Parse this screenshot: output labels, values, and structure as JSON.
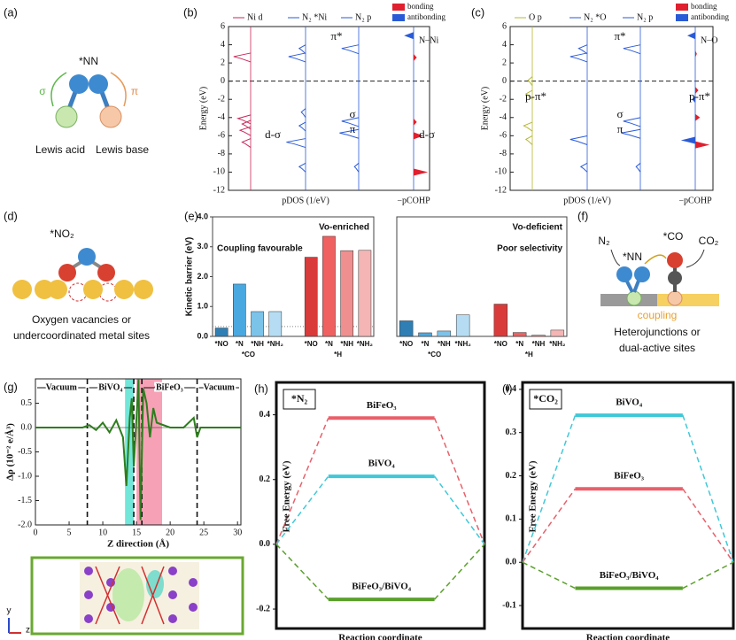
{
  "panel_labels": [
    "(a)",
    "(b)",
    "(c)",
    "(d)",
    "(e)",
    "(f)",
    "(g)",
    "(h)",
    "(i)"
  ],
  "schematics": {
    "a": {
      "species": "*NN",
      "sigma": "σ",
      "pi": "π",
      "left": "Lewis acid",
      "right": "Lewis base"
    },
    "d": {
      "species": "*NO₂",
      "caption": [
        "Oxygen vacancies or",
        "undercoordinated metal sites"
      ]
    },
    "f": {
      "left": "N₂",
      "species": "*NN",
      "middle": "*CO",
      "right": "CO₂",
      "link": "coupling",
      "caption": [
        "Heterojunctions or",
        "dual-active sites"
      ]
    },
    "g_inset": {
      "axes": [
        "y",
        "z"
      ]
    }
  },
  "chart_data": [
    {
      "type": "pdos",
      "ylabel": "Energy (eV)",
      "ylim": [
        -12,
        6
      ],
      "yticks": [
        6,
        4,
        2,
        0,
        -2,
        -4,
        -6,
        -8,
        -10,
        -12
      ],
      "xlabels": [
        "pDOS (1/eV)",
        "−pCOHP"
      ],
      "bonding": "bonding",
      "antibonding": "antibonding",
      "bonding_color": "#e0202e",
      "antibonding_color": "#2a5bd7",
      "bond": "N–Ni",
      "columns": [
        {
          "name": "Ni d",
          "color": "#c8285a",
          "energies": [
            2.6,
            -4.2,
            -4.8,
            -5.5,
            -6.8
          ],
          "heights": [
            0.8,
            0.6,
            0.4,
            0.5,
            0.4
          ]
        },
        {
          "name": "N₂ *Ni",
          "color": "#2a5bd7",
          "energies": [
            3.5,
            2.6,
            -3.5,
            -5,
            -6.8,
            -9.5
          ],
          "heights": [
            0.3,
            0.8,
            0.2,
            0.3,
            0.9,
            0.3
          ]
        },
        {
          "name": "N₂ p",
          "color": "#2a5bd7",
          "energies": [
            3.5,
            -4.5,
            -5.8,
            -9.5
          ],
          "heights": [
            0.8,
            0.8,
            0.9,
            0.2
          ]
        }
      ],
      "cohp": {
        "energies": [
          5,
          2.6,
          -4.5,
          -6,
          -10
        ],
        "values": [
          -0.6,
          0.2,
          0.2,
          0.6,
          0.9
        ]
      },
      "annotations": [
        "π*",
        "σ",
        "π",
        "d-σ",
        "d-σ"
      ]
    },
    {
      "type": "pdos",
      "ylabel": "Energy (eV)",
      "ylim": [
        -12,
        6
      ],
      "yticks": [
        6,
        4,
        2,
        0,
        -2,
        -4,
        -6,
        -8,
        -10,
        -12
      ],
      "xlabels": [
        "pDOS (1/eV)",
        "−pCOHP"
      ],
      "bonding": "bonding",
      "antibonding": "antibonding",
      "bonding_color": "#e0202e",
      "antibonding_color": "#2a5bd7",
      "bond": "N–O",
      "columns": [
        {
          "name": "O p",
          "color": "#b5b832",
          "energies": [
            0,
            -1.5,
            -5,
            -6.5
          ],
          "heights": [
            0.2,
            0.3,
            0.4,
            0.3
          ]
        },
        {
          "name": "N₂ *O",
          "color": "#2a5bd7",
          "energies": [
            3.5,
            2.6,
            -6.5,
            -9.5
          ],
          "heights": [
            0.4,
            0.8,
            0.8,
            0.3
          ]
        },
        {
          "name": "N₂ p",
          "color": "#2a5bd7",
          "energies": [
            3.5,
            -4.5,
            -5.8,
            -9.5
          ],
          "heights": [
            0.8,
            0.8,
            0.9,
            0.2
          ]
        }
      ],
      "cohp": {
        "energies": [
          5,
          3,
          -1,
          -2,
          -4,
          -6.5,
          -7
        ],
        "values": [
          -0.5,
          0.1,
          0.2,
          -0.2,
          0.3,
          -0.9,
          0.9
        ]
      },
      "annotations": [
        "p-π*",
        "π*",
        "σ",
        "π",
        "p-π*"
      ]
    },
    {
      "type": "bar",
      "ylabel": "Kinetic barrier (eV)",
      "ylim": [
        0,
        4
      ],
      "yticks": [
        {
          "value": 0,
          "label": "0.0"
        },
        {
          "value": 1,
          "label": "1.0"
        },
        {
          "value": 2,
          "label": "2.0"
        },
        {
          "value": 3,
          "label": "3.0"
        },
        {
          "value": 4,
          "label": "4.0"
        }
      ],
      "categories": [
        "*NO",
        "*N",
        "*NH",
        "*NH₂",
        "*NO",
        "*N",
        "*NH",
        "*NH₂"
      ],
      "groups": [
        "*CO",
        "*H"
      ],
      "values": [
        0.28,
        1.75,
        0.83,
        0.83,
        2.65,
        3.35,
        2.87,
        2.88
      ],
      "colors": [
        "#2f7fb5",
        "#4aa8e0",
        "#7cc3ea",
        "#b5dcf2",
        "#d93b3b",
        "#f06060",
        "#f08f8f",
        "#f5b5b5"
      ],
      "hline": 0.33,
      "annotations": [
        "Vo-enriched",
        "Coupling favourable"
      ],
      "annotation_colors": [
        "#2a3fc8",
        "#2a3fc8"
      ]
    },
    {
      "type": "bar",
      "ylim": [
        0,
        4
      ],
      "categories": [
        "*NO",
        "*N",
        "*NH",
        "*NH₂",
        "*NO",
        "*N",
        "*NH",
        "*NH₂"
      ],
      "groups": [
        "*CO",
        "*H"
      ],
      "values": [
        0.52,
        0.12,
        0.18,
        0.72,
        1.08,
        0.13,
        0.04,
        0.21
      ],
      "colors": [
        "#2f7fb5",
        "#4aa8e0",
        "#7cc3ea",
        "#b5dcf2",
        "#d93b3b",
        "#f06060",
        "#f08f8f",
        "#f5b5b5"
      ],
      "annotations": [
        "Vo-deficient",
        "Poor selectivity"
      ],
      "annotation_colors": [
        "#d42020",
        "#d42020"
      ]
    },
    {
      "type": "line",
      "xlabel": "Z direction (Å)",
      "ylabel": "Δρ (10⁻² e/Å³)",
      "xlim": [
        0,
        30.5
      ],
      "ylim": [
        -2,
        1
      ],
      "xticks": [
        0,
        5,
        10,
        15,
        20,
        25,
        30
      ],
      "yticks": [
        {
          "value": 0.5,
          "label": "0.5"
        },
        {
          "value": 0,
          "label": "0.0"
        },
        {
          "value": -0.5,
          "label": "-0.5"
        },
        {
          "value": -1,
          "label": "-1.0"
        },
        {
          "value": -1.5,
          "label": "-1.5"
        },
        {
          "value": -2,
          "label": "-2.0"
        }
      ],
      "color": "#2e7d1e",
      "x": [
        0,
        7,
        8,
        9,
        10,
        11,
        12,
        13,
        13.5,
        14,
        14.3,
        14.6,
        15,
        15.3,
        15.6,
        16,
        16.5,
        17,
        17.5,
        18,
        19,
        20,
        22,
        23.5,
        24,
        24.5,
        26,
        30.5
      ],
      "y": [
        0,
        0,
        0.05,
        -0.05,
        0.1,
        -0.1,
        0.15,
        -0.2,
        -1.2,
        0.2,
        0.6,
        -0.8,
        0.2,
        1.0,
        -1.9,
        0.8,
        0.5,
        -0.2,
        0.4,
        0.1,
        0.05,
        0,
        0,
        0.2,
        -0.2,
        0,
        0,
        0
      ],
      "regions": [
        {
          "x": [
            13.3,
            14.6
          ],
          "color": "#4fe0d0"
        },
        {
          "x": [
            15,
            18.8
          ],
          "color": "#f48aa4"
        }
      ],
      "dividers": [
        7.7,
        14.6,
        15.8,
        24
      ],
      "spans": [
        {
          "label": "Vacuum",
          "x": [
            0,
            7.7
          ]
        },
        {
          "label": "BiVO₄",
          "x": [
            7.7,
            14.6
          ]
        },
        {
          "label": "BiFeO₃",
          "x": [
            15.8,
            24
          ]
        },
        {
          "label": "Vacuum",
          "x": [
            24,
            30.5
          ]
        }
      ]
    },
    {
      "type": "energy",
      "label": "*N₂",
      "xlabel": "Reaction coordinate",
      "ylabel": "Free Energy (eV)",
      "ylim": [
        -0.26,
        0.5
      ],
      "yticks": [
        {
          "value": 0.4,
          "label": "0.4"
        },
        {
          "value": 0.2,
          "label": "0.2"
        },
        {
          "value": 0,
          "label": "0.0"
        },
        {
          "value": -0.2,
          "label": "-0.2"
        }
      ],
      "series": [
        {
          "name": "BiFeO₃",
          "color": "#e8606a",
          "values": [
            0,
            0.39,
            0
          ]
        },
        {
          "name": "BiVO₄",
          "color": "#40c8d8",
          "values": [
            0,
            0.21,
            0
          ]
        },
        {
          "name": "BiFeO₃/BiVO₄",
          "color": "#5aa02c",
          "values": [
            0,
            -0.17,
            0
          ]
        }
      ]
    },
    {
      "type": "energy",
      "label": "*CO₂",
      "xlabel": "Reaction coordinate",
      "ylabel": "Free Energy (eV)",
      "ylim": [
        -0.153,
        0.416
      ],
      "yticks": [
        {
          "value": 0.4,
          "label": "0.4"
        },
        {
          "value": 0.3,
          "label": "0.3"
        },
        {
          "value": 0.2,
          "label": "0.2"
        },
        {
          "value": 0.1,
          "label": "0.1"
        },
        {
          "value": 0,
          "label": "0.0"
        },
        {
          "value": -0.1,
          "label": "-0.1"
        }
      ],
      "series": [
        {
          "name": "BiVO₄",
          "color": "#40c8d8",
          "values": [
            0,
            0.34,
            0
          ]
        },
        {
          "name": "BiFeO₃",
          "color": "#e8606a",
          "values": [
            0,
            0.17,
            0
          ]
        },
        {
          "name": "BiFeO₃/BiVO₄",
          "color": "#5aa02c",
          "values": [
            0,
            -0.06,
            0
          ]
        }
      ]
    }
  ]
}
